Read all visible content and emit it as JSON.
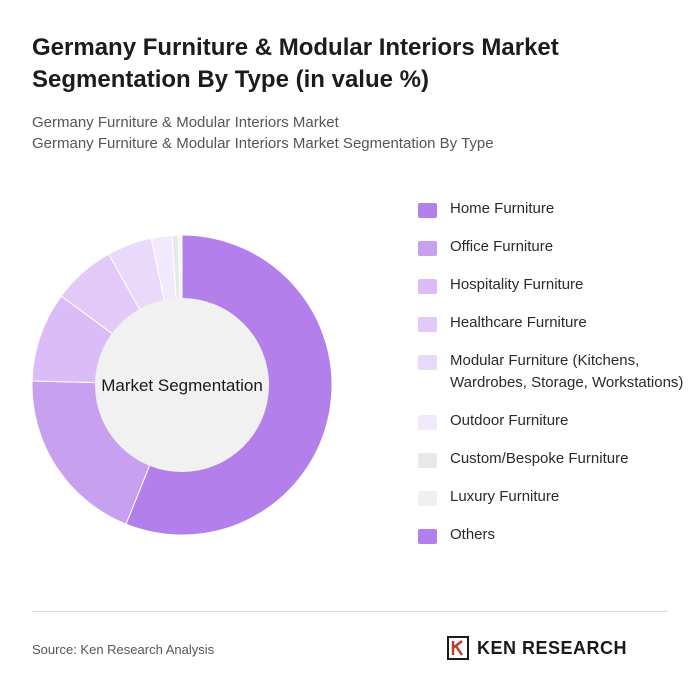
{
  "header": {
    "title": "Germany Furniture & Modular Interiors Market Segmentation By Type (in value %)",
    "subtitle_line1": "Germany Furniture & Modular Interiors Market",
    "subtitle_line2": "Germany Furniture & Modular Interiors Market Segmentation By Type"
  },
  "chart_data": {
    "type": "pie",
    "center_label": "Market Segmentation",
    "categories": [
      "Home Furniture",
      "Office Furniture",
      "Hospitality Furniture",
      "Healthcare Furniture",
      "Modular Furniture (Kitchens, Wardrobes, Storage, Workstations)",
      "Outdoor Furniture",
      "Custom/Bespoke Furniture",
      "Luxury Furniture",
      "Others"
    ],
    "values": [
      58,
      20,
      10,
      7,
      5,
      2.3,
      0.7,
      0.3,
      0.1
    ],
    "colors": [
      "#b37fea",
      "#c8a0f0",
      "#dcbcf6",
      "#e2c9f7",
      "#e9d9fa",
      "#f2eafc",
      "#e8e8e8",
      "#f0f0f0",
      "#b37fea"
    ],
    "legend_position": "right"
  },
  "footer": {
    "source": "Source: Ken Research Analysis",
    "logo_text": "KEN RESEARCH"
  }
}
